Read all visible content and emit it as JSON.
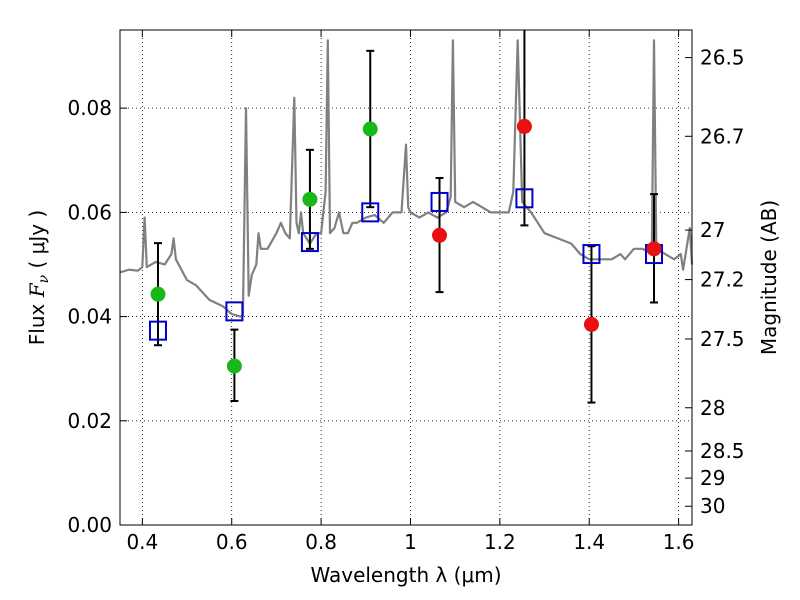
{
  "chart_data": {
    "type": "scatter",
    "title": "",
    "xlabel": "Wavelength  λ (μm)",
    "ylabel_parts": [
      "Flux  ",
      "F",
      "ν",
      "  ( μJy )"
    ],
    "ylabel_right": "Magnitude (AB)",
    "xlim": [
      0.35,
      1.63
    ],
    "ylim": [
      0.0,
      0.095
    ],
    "grid": true,
    "x_ticks": [
      0.4,
      0.6,
      0.8,
      1.0,
      1.2,
      1.4,
      1.6
    ],
    "x_tick_labels": [
      "0.4",
      "0.6",
      "0.8",
      "1",
      "1.2",
      "1.4",
      "1.6"
    ],
    "y_ticks": [
      0.0,
      0.02,
      0.04,
      0.06,
      0.08
    ],
    "y_tick_labels": [
      "0.00",
      "0.02",
      "0.04",
      "0.06",
      "0.08"
    ],
    "right_ticks": [
      {
        "label": "26.5",
        "flux": 0.0897
      },
      {
        "label": "26.7",
        "flux": 0.0746
      },
      {
        "label": "27",
        "flux": 0.0566
      },
      {
        "label": "27.2",
        "flux": 0.0471
      },
      {
        "label": "27.5",
        "flux": 0.0357
      },
      {
        "label": "28",
        "flux": 0.0225
      },
      {
        "label": "28.5",
        "flux": 0.0142
      },
      {
        "label": "29",
        "flux": 0.009
      },
      {
        "label": "30",
        "flux": 0.0036
      }
    ],
    "colors": {
      "green": "#18b818",
      "red": "#e81010",
      "model_square": "#0000cc",
      "sed_line": "#808080",
      "errorbar": "#000000"
    },
    "observed_green": [
      {
        "x": 0.435,
        "y": 0.0443,
        "err_low": 0.0098,
        "err_high": 0.0098
      },
      {
        "x": 0.606,
        "y": 0.0305,
        "err_low": 0.0067,
        "err_high": 0.007
      },
      {
        "x": 0.775,
        "y": 0.0625,
        "err_low": 0.0095,
        "err_high": 0.0095
      },
      {
        "x": 0.91,
        "y": 0.076,
        "err_low": 0.015,
        "err_high": 0.015
      }
    ],
    "observed_red": [
      {
        "x": 1.065,
        "y": 0.0556,
        "err_low": 0.0109,
        "err_high": 0.011
      },
      {
        "x": 1.255,
        "y": 0.0765,
        "err_low": 0.019,
        "err_high": 0.019
      },
      {
        "x": 1.405,
        "y": 0.0385,
        "err_low": 0.015,
        "err_high": 0.015
      },
      {
        "x": 1.545,
        "y": 0.053,
        "err_low": 0.0103,
        "err_high": 0.0105
      }
    ],
    "model_squares": [
      {
        "x": 0.435,
        "y": 0.0373
      },
      {
        "x": 0.606,
        "y": 0.041
      },
      {
        "x": 0.775,
        "y": 0.0543
      },
      {
        "x": 0.91,
        "y": 0.06
      },
      {
        "x": 1.065,
        "y": 0.062
      },
      {
        "x": 1.255,
        "y": 0.0627
      },
      {
        "x": 1.405,
        "y": 0.052
      },
      {
        "x": 1.545,
        "y": 0.052
      }
    ],
    "sed_spectrum": [
      [
        0.35,
        0.0485
      ],
      [
        0.37,
        0.049
      ],
      [
        0.39,
        0.0488
      ],
      [
        0.4,
        0.0495
      ],
      [
        0.405,
        0.059
      ],
      [
        0.41,
        0.0495
      ],
      [
        0.43,
        0.0505
      ],
      [
        0.45,
        0.05
      ],
      [
        0.465,
        0.052
      ],
      [
        0.47,
        0.055
      ],
      [
        0.475,
        0.051
      ],
      [
        0.5,
        0.047
      ],
      [
        0.52,
        0.046
      ],
      [
        0.55,
        0.0432
      ],
      [
        0.58,
        0.042
      ],
      [
        0.6,
        0.0405
      ],
      [
        0.62,
        0.04
      ],
      [
        0.625,
        0.0402
      ],
      [
        0.632,
        0.08
      ],
      [
        0.638,
        0.044
      ],
      [
        0.645,
        0.048
      ],
      [
        0.655,
        0.05
      ],
      [
        0.66,
        0.056
      ],
      [
        0.665,
        0.053
      ],
      [
        0.68,
        0.053
      ],
      [
        0.7,
        0.056
      ],
      [
        0.71,
        0.058
      ],
      [
        0.72,
        0.056
      ],
      [
        0.73,
        0.055
      ],
      [
        0.74,
        0.082
      ],
      [
        0.745,
        0.058
      ],
      [
        0.75,
        0.056
      ],
      [
        0.755,
        0.06
      ],
      [
        0.76,
        0.056
      ],
      [
        0.775,
        0.054
      ],
      [
        0.79,
        0.056
      ],
      [
        0.8,
        0.056
      ],
      [
        0.81,
        0.064
      ],
      [
        0.815,
        0.093
      ],
      [
        0.82,
        0.056
      ],
      [
        0.83,
        0.057
      ],
      [
        0.84,
        0.06
      ],
      [
        0.85,
        0.056
      ],
      [
        0.86,
        0.056
      ],
      [
        0.87,
        0.058
      ],
      [
        0.88,
        0.058
      ],
      [
        0.9,
        0.059
      ],
      [
        0.92,
        0.0595
      ],
      [
        0.94,
        0.058
      ],
      [
        0.96,
        0.06
      ],
      [
        0.98,
        0.06
      ],
      [
        0.99,
        0.073
      ],
      [
        0.995,
        0.061
      ],
      [
        1.0,
        0.06
      ],
      [
        1.02,
        0.059
      ],
      [
        1.04,
        0.06
      ],
      [
        1.06,
        0.059
      ],
      [
        1.08,
        0.06
      ],
      [
        1.09,
        0.063
      ],
      [
        1.095,
        0.093
      ],
      [
        1.1,
        0.062
      ],
      [
        1.12,
        0.061
      ],
      [
        1.14,
        0.062
      ],
      [
        1.16,
        0.061
      ],
      [
        1.18,
        0.06
      ],
      [
        1.2,
        0.06
      ],
      [
        1.22,
        0.06
      ],
      [
        1.23,
        0.064
      ],
      [
        1.24,
        0.093
      ],
      [
        1.25,
        0.062
      ],
      [
        1.27,
        0.06
      ],
      [
        1.3,
        0.056
      ],
      [
        1.33,
        0.055
      ],
      [
        1.36,
        0.054
      ],
      [
        1.38,
        0.052
      ],
      [
        1.4,
        0.051
      ],
      [
        1.42,
        0.051
      ],
      [
        1.45,
        0.051
      ],
      [
        1.47,
        0.052
      ],
      [
        1.48,
        0.051
      ],
      [
        1.5,
        0.053
      ],
      [
        1.52,
        0.053
      ],
      [
        1.54,
        0.052
      ],
      [
        1.545,
        0.093
      ],
      [
        1.55,
        0.053
      ],
      [
        1.57,
        0.052
      ],
      [
        1.59,
        0.051
      ],
      [
        1.605,
        0.052
      ],
      [
        1.61,
        0.049
      ],
      [
        1.625,
        0.057
      ],
      [
        1.63,
        0.05
      ]
    ]
  }
}
